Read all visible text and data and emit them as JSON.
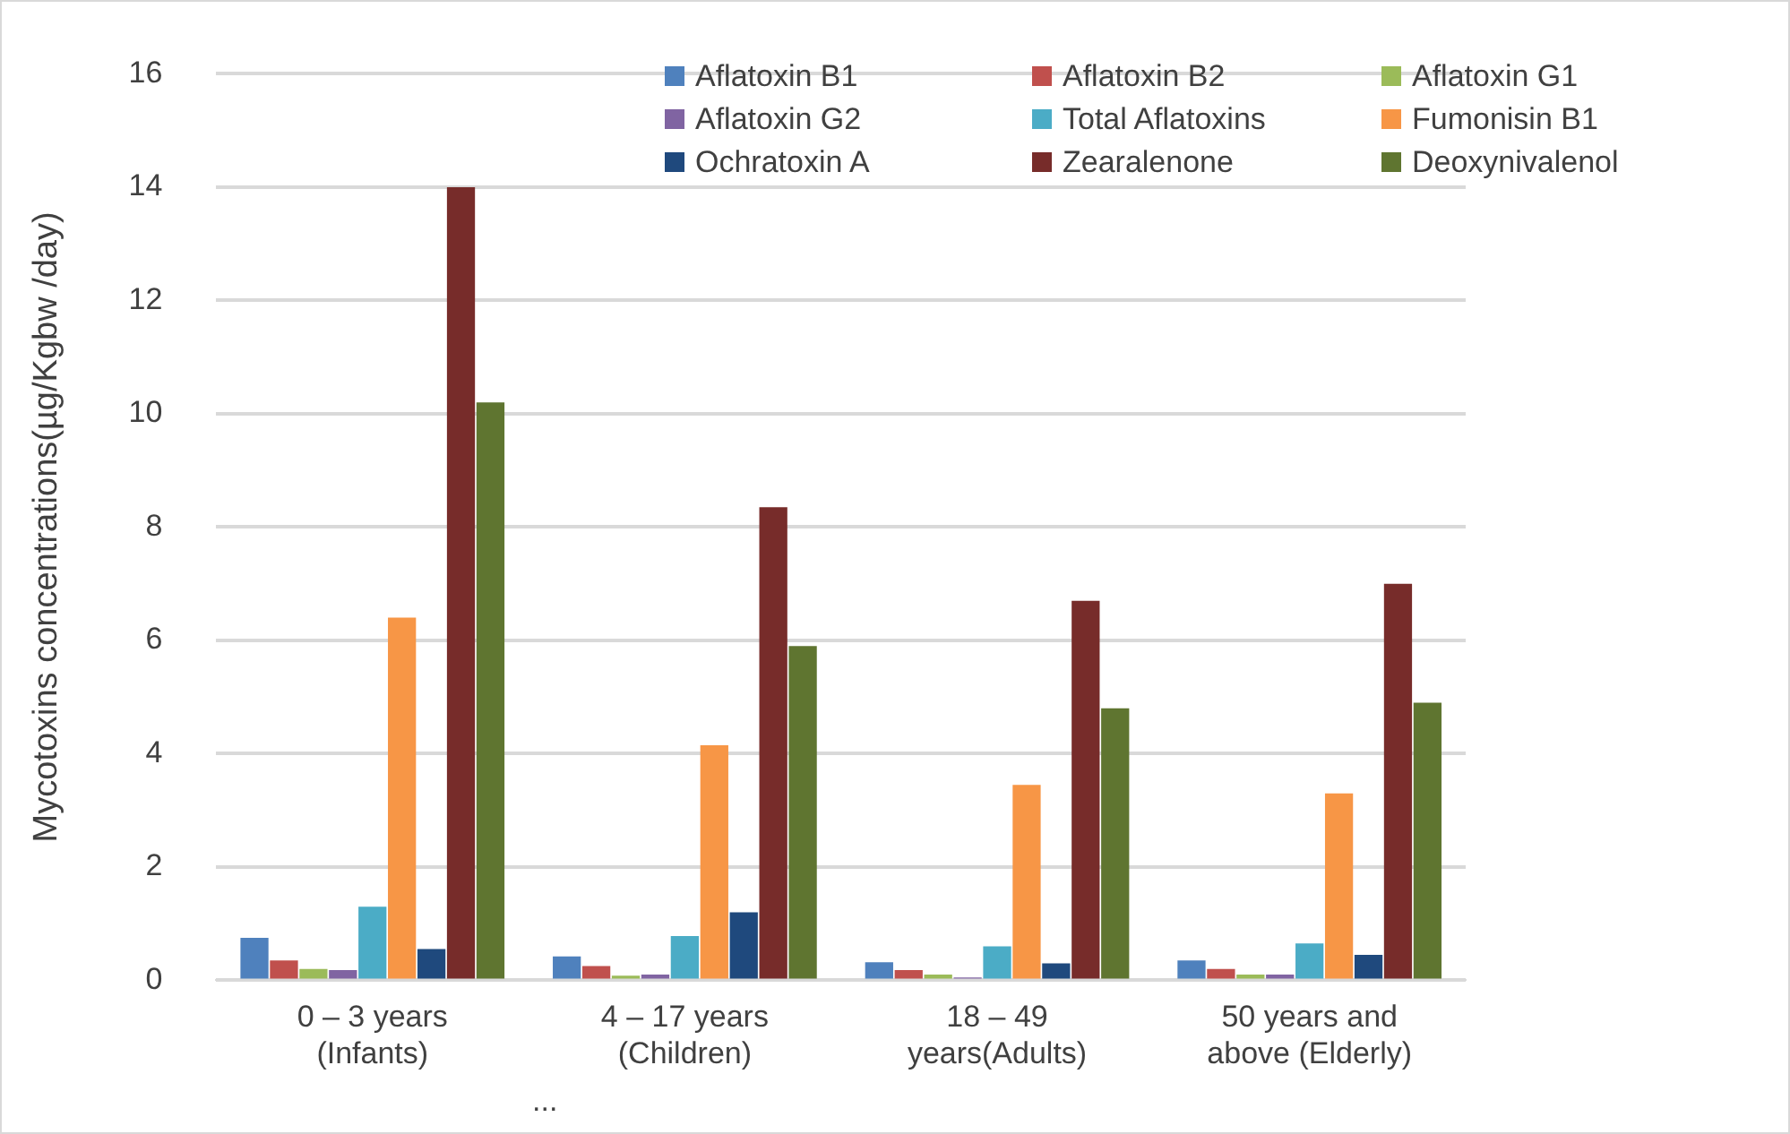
{
  "chart_data": {
    "type": "bar",
    "categories": [
      "0 – 3 years\n(Infants)",
      "4 – 17 years\n(Children)",
      "18 – 49\nyears(Adults)",
      "50 years and\nabove (Elderly)"
    ],
    "ylabel": "Mycotoxins concentrations(µg/Kgbw /day)",
    "ylim": [
      0,
      16
    ],
    "yticks": [
      0,
      2,
      4,
      6,
      8,
      10,
      12,
      14,
      16
    ],
    "grid": "y",
    "legend": "top right",
    "annotations": [
      "..."
    ],
    "series": [
      {
        "name": "Aflatoxin B1",
        "color": "#4f81bd",
        "values": [
          0.75,
          0.42,
          0.32,
          0.35
        ]
      },
      {
        "name": "Aflatoxin B2",
        "color": "#c0504d",
        "values": [
          0.35,
          0.25,
          0.18,
          0.2
        ]
      },
      {
        "name": "Aflatoxin G1",
        "color": "#9bbb59",
        "values": [
          0.2,
          0.08,
          0.1,
          0.1
        ]
      },
      {
        "name": "Aflatoxin G2",
        "color": "#8064a2",
        "values": [
          0.18,
          0.1,
          0.05,
          0.1
        ]
      },
      {
        "name": "Total Aflatoxins",
        "color": "#4bacc6",
        "values": [
          1.3,
          0.78,
          0.6,
          0.65
        ]
      },
      {
        "name": "Fumonisin B1",
        "color": "#f79646",
        "values": [
          6.4,
          4.15,
          3.45,
          3.3
        ]
      },
      {
        "name": "Ochratoxin A",
        "color": "#1f497d",
        "values": [
          0.55,
          1.2,
          0.3,
          0.45
        ]
      },
      {
        "name": "Zearalenone",
        "color": "#772c2a",
        "values": [
          14.0,
          8.35,
          6.7,
          7.0
        ]
      },
      {
        "name": "Deoxynivalenol",
        "color": "#5f7530",
        "values": [
          10.2,
          5.9,
          4.8,
          4.9
        ]
      }
    ]
  }
}
